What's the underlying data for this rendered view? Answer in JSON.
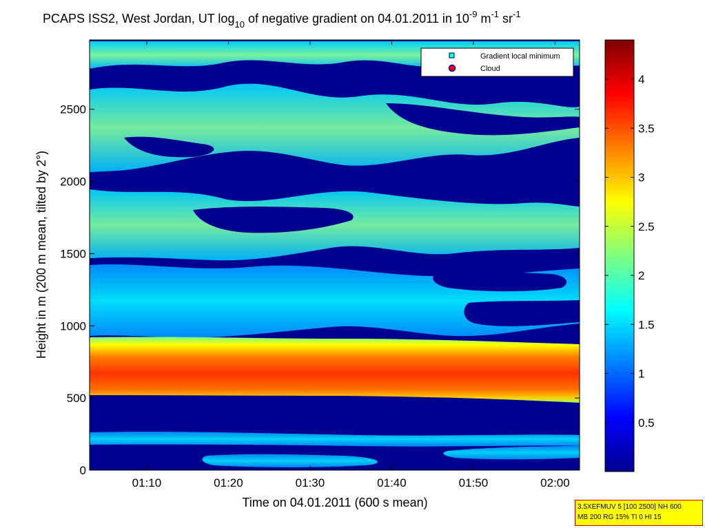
{
  "chart_data": {
    "type": "heatmap",
    "title": {
      "part1": "PCAPS ISS2, West Jordan, UT log",
      "sub10": "10",
      "part2": " of negative gradient on 04.01.2011 in 10",
      "sup1": "-9",
      "part3": " m",
      "sup2": "-1",
      "part4": " sr",
      "sup3": "-1"
    },
    "xlabel": "Time on 04.01.2011 (600 s mean)",
    "ylabel": "Height in m (200 m mean, tilted by 2°)",
    "x_ticks": [
      "01:10",
      "01:20",
      "01:30",
      "01:40",
      "01:50",
      "02:00"
    ],
    "y_ticks": [
      "0",
      "500",
      "1000",
      "1500",
      "2000",
      "2500"
    ],
    "xlim": [
      "01:03",
      "02:03"
    ],
    "ylim": [
      0,
      2980
    ],
    "colorbar": {
      "colormap": "jet",
      "ticks": [
        "0.5",
        "1",
        "1.5",
        "2",
        "2.5",
        "3",
        "3.5",
        "4"
      ],
      "range": [
        0,
        4.4
      ]
    },
    "legend": {
      "placement": "top-right",
      "entries": [
        {
          "label": "Gradient local minimum",
          "marker": "square",
          "color": "#00ffff"
        },
        {
          "label": "Cloud",
          "marker": "circle",
          "color": "#ff0000"
        }
      ]
    },
    "features": [
      {
        "feature": "strong gradient band",
        "height_range_m": [
          540,
          860
        ],
        "log10_value_range": [
          3.0,
          3.8
        ]
      },
      {
        "feature": "gradient layer",
        "height_range_m": [
          960,
          1420
        ],
        "log10_value_range": [
          1.4,
          2.2
        ]
      },
      {
        "feature": "gradient layer",
        "height_range_m": [
          1550,
          2000
        ],
        "log10_value_range": [
          1.5,
          2.3
        ]
      },
      {
        "feature": "gradient layer",
        "height_range_m": [
          2050,
          2600
        ],
        "log10_value_range": [
          1.5,
          2.4
        ]
      },
      {
        "feature": "gradient layer",
        "height_range_m": [
          2750,
          2980
        ],
        "log10_value_range": [
          1.5,
          2.3
        ]
      },
      {
        "feature": "weak layer",
        "height_range_m": [
          200,
          260
        ],
        "log10_value_range": [
          1.3,
          1.7
        ]
      },
      {
        "feature": "weak layer",
        "height_range_m": [
          30,
          120
        ],
        "log10_value_range": [
          1.3,
          1.7
        ]
      }
    ]
  },
  "info_box": {
    "line1": "3.5XEFMUV 5 [100 2500] NH 600",
    "line2": "MB 200 RG 15% TI 0 HI 15"
  }
}
